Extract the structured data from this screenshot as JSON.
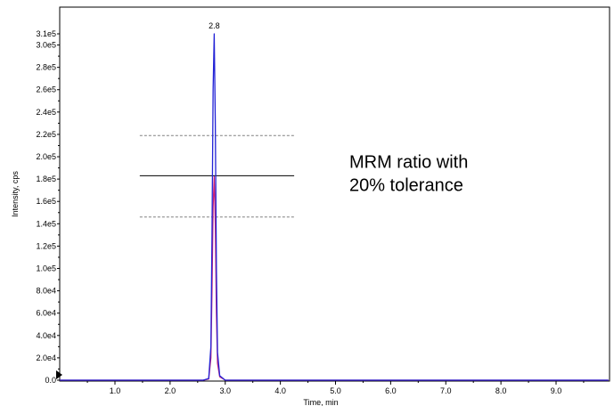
{
  "chart_data": {
    "type": "line",
    "title": "",
    "xlabel": "Time, min",
    "ylabel": "Intensity, cps",
    "xlim": [
      0.0,
      9.95
    ],
    "ylim": [
      0,
      313000
    ],
    "x_ticks": [
      1.0,
      2.0,
      3.0,
      4.0,
      5.0,
      6.0,
      7.0,
      8.0,
      9.0
    ],
    "x_tick_labels": [
      "1.0",
      "2.0",
      "3.0",
      "4.0",
      "5.0",
      "6.0",
      "7.0",
      "8.0",
      "9.0"
    ],
    "y_ticks": [
      0,
      20000,
      40000,
      60000,
      80000,
      100000,
      120000,
      140000,
      160000,
      180000,
      200000,
      220000,
      240000,
      260000,
      280000,
      300000,
      310000
    ],
    "y_tick_labels": [
      "0.0",
      "2.0e4",
      "4.0e4",
      "6.0e4",
      "8.0e4",
      "1.0e5",
      "1.2e5",
      "1.4e5",
      "1.6e5",
      "1.8e5",
      "2.0e5",
      "2.2e5",
      "2.4e5",
      "2.6e5",
      "2.8e5",
      "3.0e5",
      "3.1e5"
    ],
    "grid": false,
    "series": [
      {
        "color": "#2323d6",
        "x": [
          0.0,
          2.6,
          2.7,
          2.74,
          2.76,
          2.78,
          2.8,
          2.82,
          2.84,
          2.86,
          2.9,
          3.0,
          9.95
        ],
        "y": [
          0,
          0,
          1500,
          30000,
          130000,
          260000,
          310000,
          230000,
          100000,
          25000,
          4000,
          0,
          0
        ]
      },
      {
        "color": "#cc2277",
        "x": [
          0.0,
          2.6,
          2.7,
          2.74,
          2.76,
          2.78,
          2.8,
          2.82,
          2.84,
          2.86,
          2.9,
          3.0,
          9.95
        ],
        "y": [
          0,
          0,
          1000,
          20000,
          80000,
          155000,
          182000,
          140000,
          60000,
          15000,
          3000,
          0,
          0
        ]
      }
    ],
    "reference_lines": [
      {
        "y": 219000,
        "x_from": 1.45,
        "x_to": 4.25,
        "style": "dashed",
        "color": "#808080"
      },
      {
        "y": 183000,
        "x_from": 1.45,
        "x_to": 4.25,
        "style": "solid",
        "color": "#000000"
      },
      {
        "y": 146000,
        "x_from": 1.45,
        "x_to": 4.25,
        "style": "dashed",
        "color": "#808080"
      }
    ],
    "annotations": [
      {
        "type": "peak-label",
        "text": "2.8",
        "x": 2.8,
        "y": 313000
      },
      {
        "type": "note",
        "lines": [
          "MRM ratio with",
          "20% tolerance"
        ],
        "x": 5.25,
        "y": 190000
      }
    ]
  }
}
